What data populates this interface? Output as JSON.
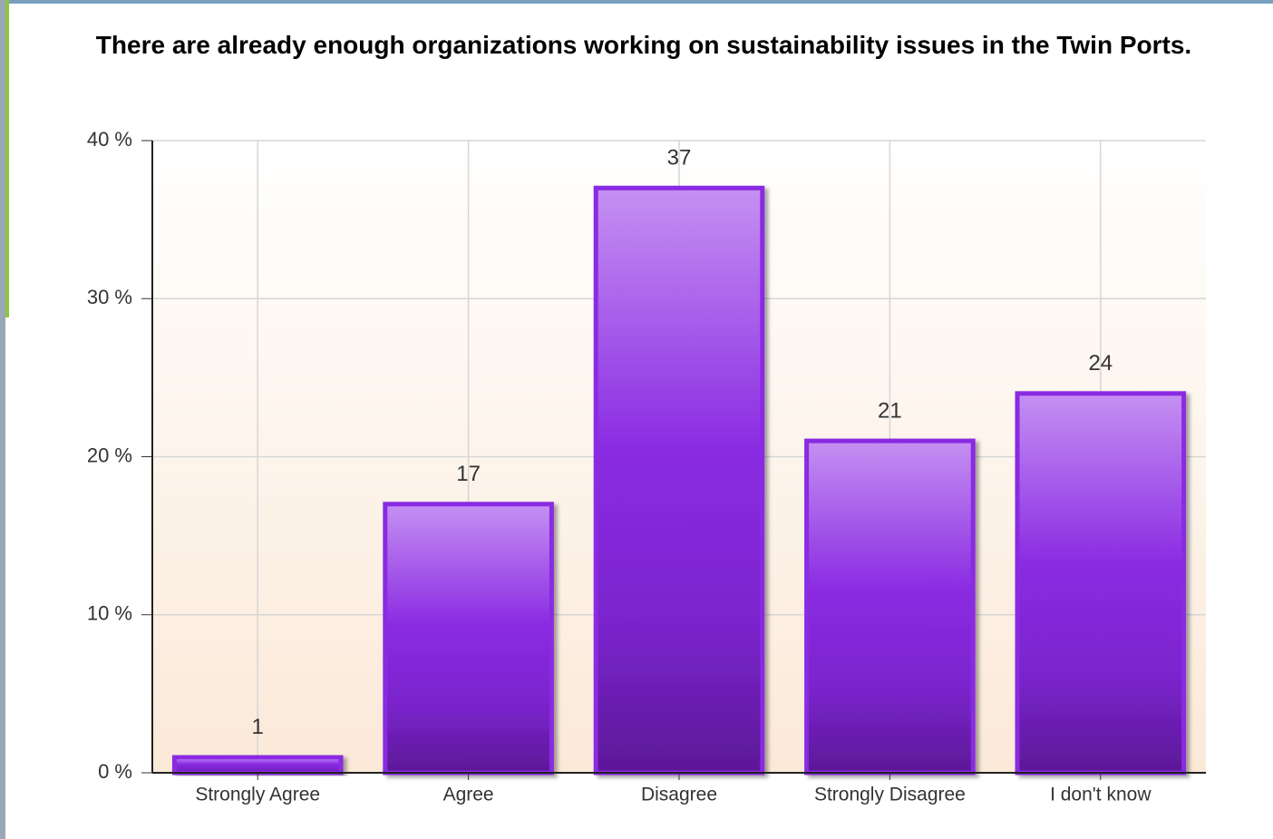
{
  "chart_data": {
    "type": "bar",
    "title": "There are already enough organizations working on sustainability issues in the Twin Ports.",
    "categories": [
      "Strongly Agree",
      "Agree",
      "Disagree",
      "Strongly Disagree",
      "I don't know"
    ],
    "values": [
      1,
      17,
      37,
      21,
      24
    ],
    "color": "#8a2be2",
    "ylim": [
      0,
      40
    ],
    "yticks": [
      {
        "value": 0,
        "label": "0 %"
      },
      {
        "value": 10,
        "label": "10 %"
      },
      {
        "value": 20,
        "label": "20 %"
      },
      {
        "value": 30,
        "label": "30 %"
      },
      {
        "value": 40,
        "label": "40 %"
      }
    ],
    "grid": true
  }
}
